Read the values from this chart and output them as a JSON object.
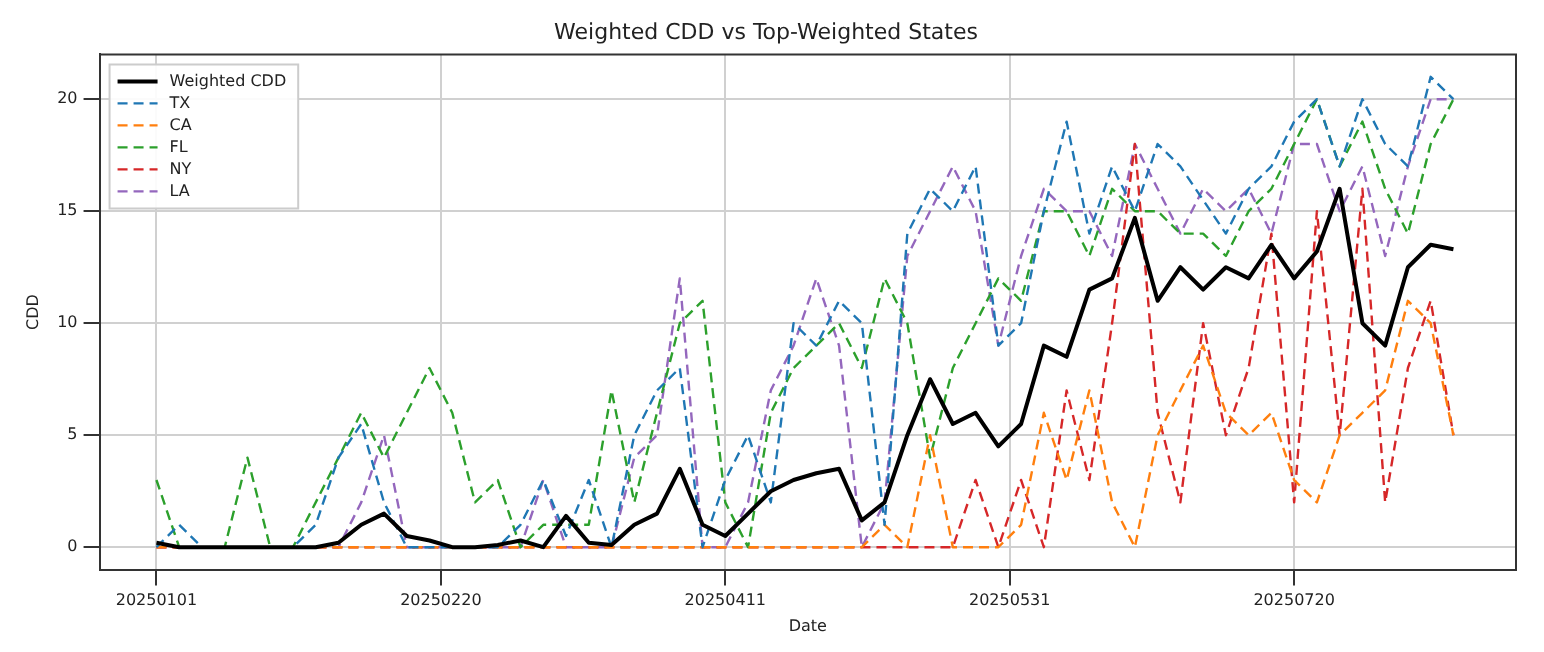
{
  "chart_data": {
    "type": "line",
    "title": "Weighted CDD vs Top-Weighted States",
    "xlabel": "Date",
    "ylabel": "CDD",
    "x": [
      "2025-01-01",
      "2025-01-05",
      "2025-01-09",
      "2025-01-13",
      "2025-01-17",
      "2025-01-21",
      "2025-01-25",
      "2025-01-29",
      "2025-02-02",
      "2025-02-06",
      "2025-02-10",
      "2025-02-14",
      "2025-02-18",
      "2025-02-22",
      "2025-02-26",
      "2025-03-02",
      "2025-03-06",
      "2025-03-10",
      "2025-03-14",
      "2025-03-18",
      "2025-03-22",
      "2025-03-26",
      "2025-03-30",
      "2025-04-03",
      "2025-04-07",
      "2025-04-11",
      "2025-04-15",
      "2025-04-19",
      "2025-04-23",
      "2025-04-27",
      "2025-05-01",
      "2025-05-05",
      "2025-05-09",
      "2025-05-13",
      "2025-05-17",
      "2025-05-21",
      "2025-05-25",
      "2025-05-29",
      "2025-06-02",
      "2025-06-06",
      "2025-06-10",
      "2025-06-14",
      "2025-06-18",
      "2025-06-22",
      "2025-06-26",
      "2025-06-30",
      "2025-07-04",
      "2025-07-08",
      "2025-07-12",
      "2025-07-16",
      "2025-07-20",
      "2025-07-24",
      "2025-07-28",
      "2025-08-01",
      "2025-08-05",
      "2025-08-09",
      "2025-08-13",
      "2025-08-17"
    ],
    "series": [
      {
        "name": "Weighted CDD",
        "color": "#000000",
        "line_style": "solid",
        "values": [
          0.2,
          0,
          0,
          0,
          0,
          0,
          0,
          0,
          0.2,
          1.0,
          1.5,
          0.5,
          0.3,
          0,
          0,
          0.1,
          0.3,
          0,
          1.4,
          0.2,
          0.1,
          1.0,
          1.5,
          3.5,
          1.0,
          0.5,
          1.5,
          2.5,
          3.0,
          3.3,
          3.5,
          1.2,
          2,
          5,
          7.5,
          5.5,
          6,
          4.5,
          5.5,
          9,
          8.5,
          11.5,
          12,
          14.7,
          11,
          12.5,
          11.5,
          12.5,
          12,
          13.5,
          12,
          13.2,
          16,
          10,
          9,
          12.5,
          13.5,
          13.3
        ]
      },
      {
        "name": "TX",
        "color": "#1f77b4",
        "line_style": "dashed",
        "values": [
          0,
          1,
          0,
          0,
          0,
          0,
          0,
          1,
          4,
          5.5,
          2,
          0,
          0,
          0,
          0,
          0,
          1,
          3,
          0.5,
          3,
          0,
          5,
          7,
          8,
          0,
          3,
          5,
          2,
          10,
          9,
          11,
          10,
          1,
          14,
          16,
          15,
          17,
          9,
          10,
          15,
          19,
          14,
          17,
          15,
          18,
          17,
          15.5,
          14,
          16,
          17,
          19,
          20,
          17,
          20,
          18,
          17,
          21,
          20
        ]
      },
      {
        "name": "CA",
        "color": "#ff7f0e",
        "line_style": "dashed",
        "values": [
          0,
          0,
          0,
          0,
          0,
          0,
          0,
          0,
          0,
          0,
          0,
          0,
          0,
          0,
          0,
          0,
          0,
          0,
          0,
          0,
          0,
          0,
          0,
          0,
          0,
          0,
          0,
          0,
          0,
          0,
          0,
          0,
          1,
          0,
          5,
          0,
          0,
          0,
          1,
          6,
          3,
          7,
          2,
          0,
          5,
          7,
          9,
          6,
          5,
          6,
          3,
          2,
          5,
          6,
          7,
          11,
          10,
          5
        ]
      },
      {
        "name": "FL",
        "color": "#2ca02c",
        "line_style": "dashed",
        "values": [
          3,
          0,
          0,
          0,
          4,
          0,
          0,
          2,
          4,
          6,
          4,
          6,
          8,
          6,
          2,
          3,
          0,
          1,
          1,
          1,
          7,
          2,
          6,
          10,
          11,
          2,
          0,
          6,
          8,
          9,
          10,
          8,
          12,
          10,
          4,
          8,
          10,
          12,
          11,
          15,
          15,
          13,
          16,
          15,
          15,
          14,
          14,
          13,
          15,
          16,
          18,
          20,
          17,
          19,
          16,
          14,
          18,
          20
        ]
      },
      {
        "name": "NY",
        "color": "#d62728",
        "line_style": "dashed",
        "values": [
          0,
          0,
          0,
          0,
          0,
          0,
          0,
          0,
          0,
          0,
          0,
          0,
          0,
          0,
          0,
          0,
          0,
          0,
          0,
          0,
          0,
          0,
          0,
          0,
          0,
          0,
          0,
          0,
          0,
          0,
          0,
          0,
          0,
          0,
          0,
          0,
          3,
          0,
          3,
          0,
          7,
          3,
          10,
          18,
          6,
          2,
          10,
          5,
          8,
          14,
          2,
          15,
          5,
          16,
          2,
          8,
          11,
          5
        ]
      },
      {
        "name": "LA",
        "color": "#9467bd",
        "line_style": "dashed",
        "values": [
          0,
          0,
          0,
          0,
          0,
          0,
          0,
          0,
          0,
          2,
          5,
          0,
          0,
          0,
          0,
          0,
          0,
          3,
          0,
          0,
          0,
          4,
          5,
          12,
          0,
          0,
          2,
          7,
          9,
          12,
          9,
          0,
          2,
          13,
          15,
          17,
          15,
          9,
          13,
          16,
          15,
          15,
          13,
          18,
          16,
          14,
          16,
          15,
          16,
          14,
          18,
          18,
          15,
          17,
          13,
          17,
          20,
          20
        ]
      }
    ],
    "xlim": [
      "2024-12-22",
      "2025-08-28"
    ],
    "xticks": [
      {
        "value": "2025-01-01",
        "label": "20250101"
      },
      {
        "value": "2025-02-20",
        "label": "20250220"
      },
      {
        "value": "2025-04-11",
        "label": "20250411"
      },
      {
        "value": "2025-05-31",
        "label": "20250531"
      },
      {
        "value": "2025-07-20",
        "label": "20250720"
      }
    ],
    "ylim": [
      -1,
      22
    ],
    "yticks": [
      0,
      5,
      10,
      15,
      20
    ],
    "grid": true,
    "legend": "top left"
  }
}
